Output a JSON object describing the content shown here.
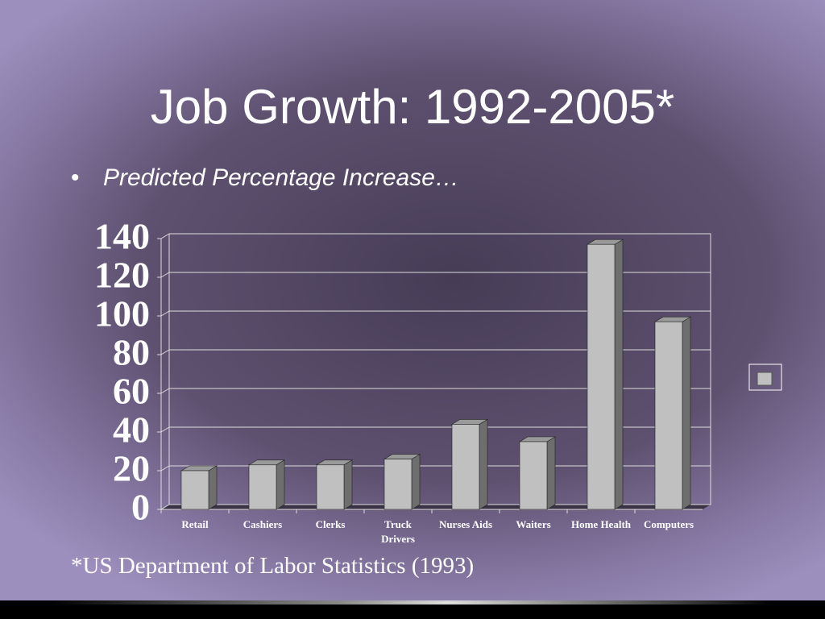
{
  "title": "Job Growth:  1992-2005*",
  "bullet": "Predicted Percentage Increase…",
  "footnote": "*US Department of Labor Statistics (1993)",
  "chart_data": {
    "type": "bar3d",
    "categories": [
      "Retail",
      "Cashiers",
      "Clerks",
      "Truck\nDrivers",
      "Nurses Aids",
      "Waiters",
      "Home Health",
      "Computers"
    ],
    "values": [
      20,
      23,
      23,
      26,
      44,
      35,
      137,
      97
    ],
    "color": "#c0c0c0",
    "ylim": [
      0,
      140
    ],
    "yticks": [
      0,
      20,
      40,
      60,
      80,
      100,
      120,
      140
    ],
    "grid": true
  }
}
